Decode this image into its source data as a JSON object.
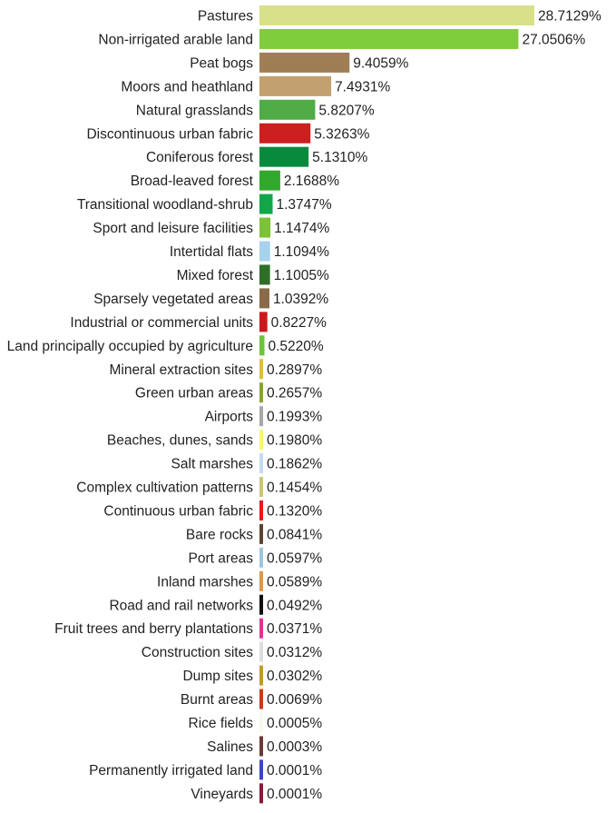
{
  "chart_data": {
    "type": "bar",
    "orientation": "horizontal",
    "categories": [
      "Pastures",
      "Non-irrigated arable land",
      "Peat bogs",
      "Moors and heathland",
      "Natural grasslands",
      "Discontinuous urban fabric",
      "Coniferous forest",
      "Broad-leaved forest",
      "Transitional woodland-shrub",
      "Sport and leisure facilities",
      "Intertidal flats",
      "Mixed forest",
      "Sparsely vegetated areas",
      "Industrial or commercial units",
      "Land principally occupied by agriculture",
      "Mineral extraction sites",
      "Green urban areas",
      "Airports",
      "Beaches, dunes, sands",
      "Salt marshes",
      "Complex cultivation patterns",
      "Continuous urban fabric",
      "Bare rocks",
      "Port areas",
      "Inland marshes",
      "Road and rail networks",
      "Fruit trees and berry plantations",
      "Construction sites",
      "Dump sites",
      "Burnt areas",
      "Rice fields",
      "Salines",
      "Permanently irrigated land",
      "Vineyards"
    ],
    "values": [
      28.7129,
      27.0506,
      9.4059,
      7.4931,
      5.8207,
      5.3263,
      5.131,
      2.1688,
      1.3747,
      1.1474,
      1.1094,
      1.1005,
      1.0392,
      0.8227,
      0.522,
      0.2897,
      0.2657,
      0.1993,
      0.198,
      0.1862,
      0.1454,
      0.132,
      0.0841,
      0.0597,
      0.0589,
      0.0492,
      0.0371,
      0.0312,
      0.0302,
      0.0069,
      0.0005,
      0.0003,
      0.0001,
      0.0001
    ],
    "value_labels": [
      "28.7129%",
      "27.0506%",
      "9.4059%",
      "7.4931%",
      "5.8207%",
      "5.3263%",
      "5.1310%",
      "2.1688%",
      "1.3747%",
      "1.1474%",
      "1.1094%",
      "1.1005%",
      "1.0392%",
      "0.8227%",
      "0.5220%",
      "0.2897%",
      "0.2657%",
      "0.1993%",
      "0.1980%",
      "0.1862%",
      "0.1454%",
      "0.1320%",
      "0.0841%",
      "0.0597%",
      "0.0589%",
      "0.0492%",
      "0.0371%",
      "0.0312%",
      "0.0302%",
      "0.0069%",
      "0.0005%",
      "0.0003%",
      "0.0001%",
      "0.0001%"
    ],
    "colors": [
      "#d8e08a",
      "#7fcc3d",
      "#a07e55",
      "#c2a070",
      "#4fac46",
      "#cc1f1f",
      "#078a3e",
      "#32a82d",
      "#12a64b",
      "#7ec23a",
      "#a7d2ec",
      "#2e6e28",
      "#8a6a48",
      "#c81b1b",
      "#6cc43a",
      "#ddbe3e",
      "#8aa232",
      "#a8a8a8",
      "#f8f86a",
      "#c4dcf2",
      "#c9c67a",
      "#e51a1a",
      "#5a4730",
      "#9fc6de",
      "#d99a4e",
      "#111111",
      "#e8308e",
      "#dddddd",
      "#c29a2a",
      "#cc3a1a",
      "#f4fbee",
      "#6b3a3a",
      "#3c44cc",
      "#8a1a38"
    ],
    "title": "",
    "xlabel": "",
    "ylabel": "",
    "xlim": [
      0,
      28.7129
    ],
    "grid": false,
    "legend": "none"
  }
}
